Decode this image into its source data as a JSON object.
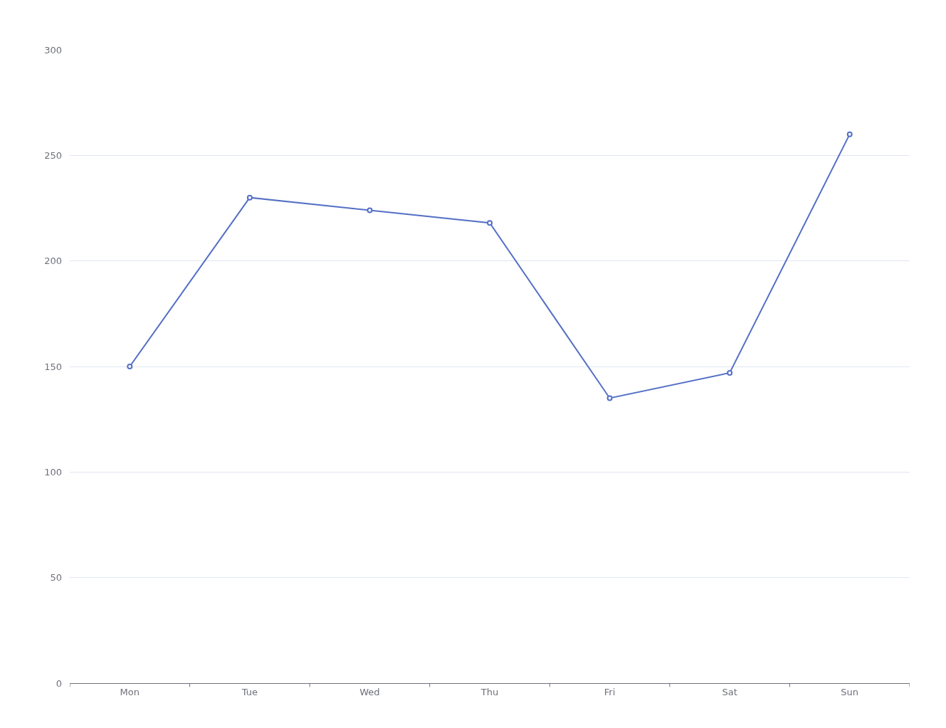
{
  "chart_data": {
    "type": "line",
    "categories": [
      "Mon",
      "Tue",
      "Wed",
      "Thu",
      "Fri",
      "Sat",
      "Sun"
    ],
    "values": [
      150,
      230,
      224,
      218,
      135,
      147,
      260
    ],
    "color": "#5470c6",
    "ylim": [
      0,
      300
    ],
    "yticks": [
      0,
      50,
      100,
      150,
      200,
      250,
      300
    ],
    "grid": "y",
    "marker": "circle"
  }
}
